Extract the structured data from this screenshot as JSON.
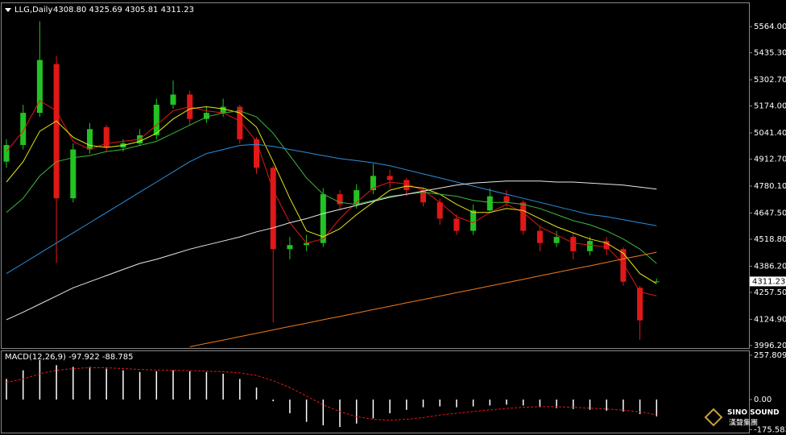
{
  "chart_data": [
    {
      "type": "candlestick",
      "title": "LLG,Daily",
      "ohlc_text": "4308.80 4325.69 4305.81 4311.23",
      "open": [
        4900,
        4982,
        5140,
        5380,
        4720,
        4960,
        5070,
        4970,
        4990,
        5030,
        5180,
        5230,
        5110,
        5140,
        5170,
        5010,
        4870,
        4470,
        4490,
        4500,
        4740,
        4690,
        4760,
        4830,
        4810,
        4760,
        4700,
        4620,
        4560,
        4660,
        4730,
        4700,
        4560,
        4500,
        4530,
        4460,
        4510,
        4470,
        4280,
        4308.8
      ],
      "high": [
        5010,
        5180,
        5590,
        5420,
        4990,
        5090,
        5080,
        5010,
        5060,
        5210,
        5300,
        5250,
        5170,
        5210,
        5180,
        5020,
        4880,
        4530,
        4540,
        4770,
        4760,
        4790,
        4890,
        4860,
        4820,
        4770,
        4720,
        4640,
        4690,
        4770,
        4760,
        4710,
        4580,
        4560,
        4550,
        4530,
        4530,
        4480,
        4290,
        4325.69
      ],
      "low": [
        4870,
        4960,
        5120,
        4402,
        4700,
        4940,
        4950,
        4950,
        4980,
        5010,
        5160,
        5080,
        5090,
        5120,
        4990,
        4840,
        4110,
        4420,
        4460,
        4480,
        4660,
        4670,
        4740,
        4770,
        4730,
        4680,
        4590,
        4540,
        4540,
        4650,
        4680,
        4540,
        4460,
        4480,
        4420,
        4440,
        4440,
        4290,
        4025,
        4305.81
      ],
      "close": [
        4982,
        5140,
        5400,
        4720,
        4960,
        5060,
        4970,
        4990,
        5030,
        5180,
        5230,
        5110,
        5140,
        5170,
        5010,
        4870,
        4470,
        4490,
        4500,
        4740,
        4690,
        4760,
        4830,
        4810,
        4760,
        4700,
        4620,
        4560,
        4660,
        4730,
        4700,
        4560,
        4500,
        4530,
        4460,
        4510,
        4470,
        4310,
        4120,
        4311.23
      ],
      "up_color": "#22c322",
      "down_color": "#e01818",
      "ma_lines": [
        {
          "color": "#e01818",
          "values": [
            4950,
            5050,
            5200,
            5150,
            5000,
            4960,
            4990,
            5000,
            5010,
            5080,
            5150,
            5170,
            5150,
            5140,
            5100,
            5000,
            4760,
            4600,
            4500,
            4520,
            4620,
            4700,
            4770,
            4800,
            4790,
            4760,
            4700,
            4630,
            4600,
            4650,
            4690,
            4650,
            4580,
            4540,
            4500,
            4490,
            4480,
            4400,
            4260,
            4240
          ]
        },
        {
          "color": "#e6e61a",
          "values": [
            4800,
            4900,
            5050,
            5100,
            5020,
            4980,
            4970,
            4980,
            5000,
            5040,
            5110,
            5160,
            5170,
            5160,
            5140,
            5070,
            4900,
            4720,
            4560,
            4530,
            4570,
            4640,
            4700,
            4760,
            4780,
            4770,
            4740,
            4690,
            4650,
            4650,
            4670,
            4660,
            4620,
            4580,
            4550,
            4520,
            4500,
            4450,
            4350,
            4300
          ]
        },
        {
          "color": "#3cb83c",
          "values": [
            4650,
            4720,
            4830,
            4900,
            4920,
            4930,
            4950,
            4960,
            4980,
            5000,
            5040,
            5080,
            5120,
            5140,
            5150,
            5120,
            5040,
            4930,
            4820,
            4740,
            4700,
            4690,
            4710,
            4730,
            4740,
            4750,
            4740,
            4730,
            4710,
            4700,
            4700,
            4690,
            4670,
            4640,
            4610,
            4590,
            4560,
            4520,
            4470,
            4400
          ]
        },
        {
          "color": "#2b8fdc",
          "values": [
            4350,
            4400,
            4450,
            4500,
            4550,
            4600,
            4650,
            4700,
            4750,
            4800,
            4850,
            4900,
            4940,
            4960,
            4980,
            4985,
            4975,
            4960,
            4945,
            4930,
            4915,
            4905,
            4895,
            4880,
            4860,
            4840,
            4820,
            4800,
            4780,
            4760,
            4740,
            4720,
            4700,
            4680,
            4660,
            4640,
            4630,
            4615,
            4600,
            4585
          ]
        },
        {
          "color": "#e8e8e8",
          "values": [
            4123,
            4160,
            4200,
            4240,
            4280,
            4310,
            4340,
            4370,
            4400,
            4420,
            4445,
            4470,
            4490,
            4510,
            4530,
            4555,
            4575,
            4600,
            4620,
            4645,
            4665,
            4685,
            4705,
            4725,
            4740,
            4755,
            4770,
            4785,
            4795,
            4800,
            4805,
            4805,
            4805,
            4800,
            4800,
            4795,
            4790,
            4785,
            4775,
            4765
          ]
        },
        {
          "color": "#f07a1a",
          "values": [
            null,
            null,
            null,
            null,
            null,
            null,
            null,
            null,
            null,
            null,
            null,
            3990,
            4007,
            4023,
            4040,
            4056,
            4073,
            4090,
            4106,
            4123,
            4139,
            4156,
            4173,
            4189,
            4206,
            4222,
            4239,
            4256,
            4272,
            4289,
            4305,
            4322,
            4339,
            4355,
            4372,
            4388,
            4405,
            4422,
            4438,
            4455
          ]
        }
      ],
      "ylim": [
        3984,
        5679
      ],
      "yticks": [
        {
          "value": 5564,
          "label": "5564.00"
        },
        {
          "value": 5435.3,
          "label": "5435.30"
        },
        {
          "value": 5302.7,
          "label": "5302.70"
        },
        {
          "value": 5174,
          "label": "5174.00"
        },
        {
          "value": 5041.4,
          "label": "5041.40"
        },
        {
          "value": 4912.7,
          "label": "4912.70"
        },
        {
          "value": 4780.1,
          "label": "4780.10"
        },
        {
          "value": 4647.5,
          "label": "4647.50"
        },
        {
          "value": 4518.8,
          "label": "4518.80"
        },
        {
          "value": 4386.2,
          "label": "4386.20"
        },
        {
          "value": 4257.5,
          "label": "4257.50"
        },
        {
          "value": 4124.9,
          "label": "4124.90"
        },
        {
          "value": 3996.2,
          "label": "3996.20"
        }
      ],
      "last_price": 4311.23
    },
    {
      "type": "macd",
      "title": "MACD(12,26,9) -97.922 -88.785",
      "histogram": {
        "color": "#ffffff",
        "values": [
          120,
          170,
          230,
          200,
          190,
          190,
          180,
          170,
          160,
          165,
          170,
          165,
          160,
          150,
          120,
          70,
          -10,
          -80,
          -130,
          -150,
          -160,
          -140,
          -110,
          -80,
          -60,
          -45,
          -40,
          -45,
          -40,
          -35,
          -30,
          -35,
          -45,
          -50,
          -55,
          -60,
          -65,
          -70,
          -85,
          -97.922
        ]
      },
      "signal": {
        "color": "#e01818",
        "values": [
          100,
          120,
          150,
          170,
          180,
          185,
          185,
          180,
          175,
          172,
          170,
          168,
          165,
          162,
          155,
          140,
          110,
          70,
          20,
          -30,
          -70,
          -100,
          -115,
          -120,
          -115,
          -105,
          -90,
          -80,
          -70,
          -60,
          -52,
          -45,
          -42,
          -42,
          -45,
          -50,
          -55,
          -62,
          -72,
          -88.785
        ]
      },
      "ylim": [
        -197,
        281
      ],
      "yticks": [
        257.809,
        {
          "value": 0,
          "label": "0.00"
        },
        -175.583
      ]
    }
  ],
  "logo": {
    "brand": "SINO SOUND",
    "chinese": "漢聲集團"
  }
}
